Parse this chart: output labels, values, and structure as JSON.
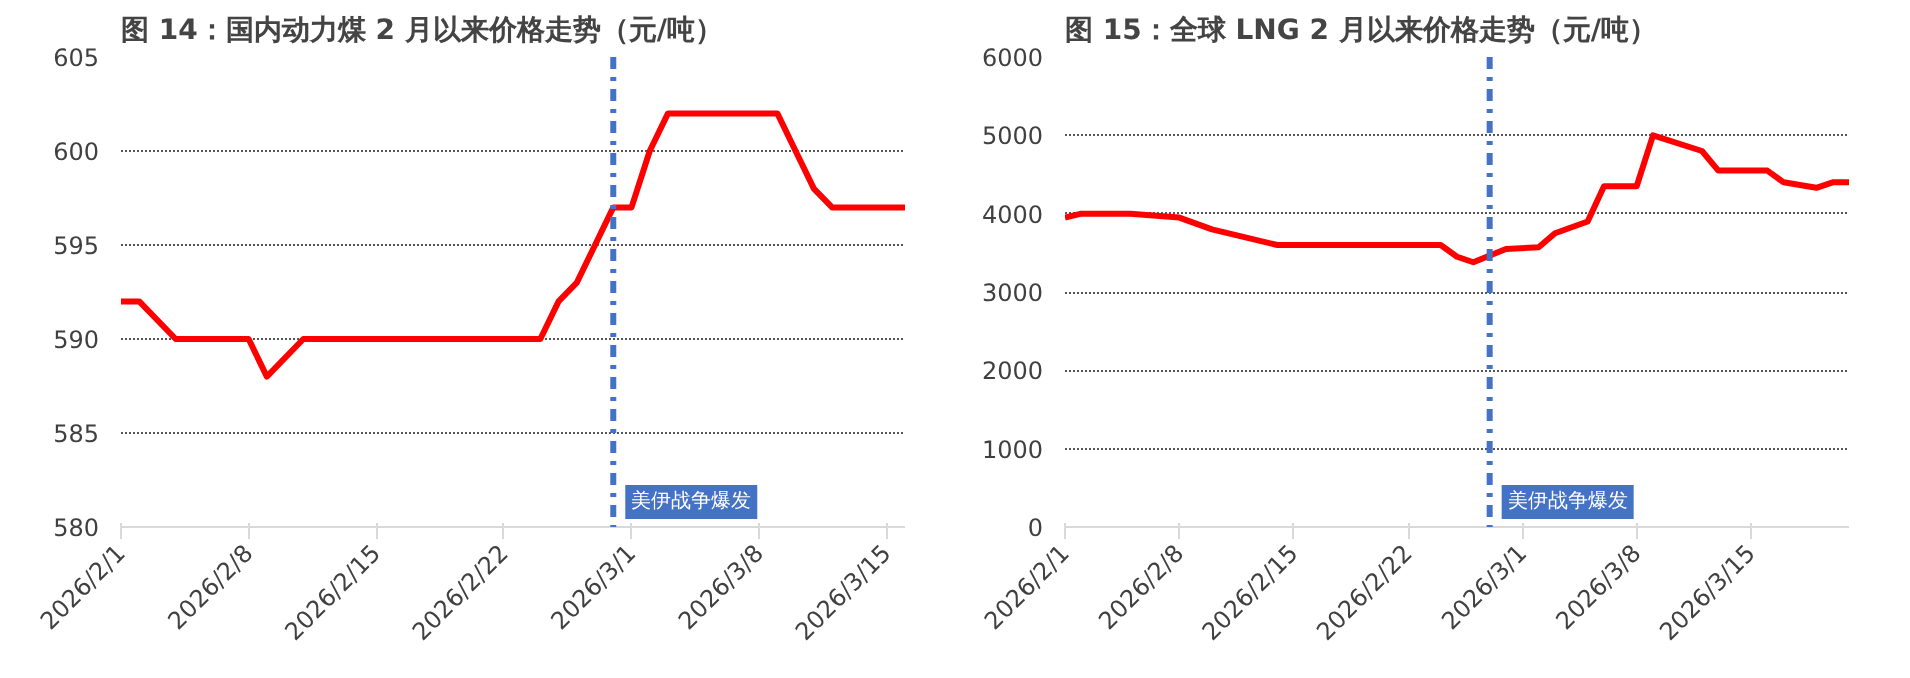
{
  "chart_data": [
    {
      "type": "line",
      "title": "图 14：国内动力煤 2 月以来价格走势（元/吨）",
      "x": [
        "2026-02-01",
        "2026-02-02",
        "2026-02-04",
        "2026-02-08",
        "2026-02-09",
        "2026-02-11",
        "2026-02-24",
        "2026-02-25",
        "2026-02-26",
        "2026-02-27",
        "2026-02-28",
        "2026-03-01",
        "2026-03-02",
        "2026-03-03",
        "2026-03-09",
        "2026-03-10",
        "2026-03-11",
        "2026-03-12",
        "2026-03-16"
      ],
      "series": [
        {
          "color": "#ff0000",
          "values": [
            592,
            592,
            590,
            590,
            588,
            590,
            590,
            592,
            593,
            595,
            597,
            597,
            600,
            602,
            602,
            600,
            598,
            597,
            597
          ]
        }
      ],
      "xlim": [
        "2026-02-01",
        "2026-03-16"
      ],
      "xticks": [
        {
          "value": "2026-02-01",
          "label": "2026/2/1"
        },
        {
          "value": "2026-02-08",
          "label": "2026/2/8"
        },
        {
          "value": "2026-02-15",
          "label": "2026/2/15"
        },
        {
          "value": "2026-02-22",
          "label": "2026/2/22"
        },
        {
          "value": "2026-03-01",
          "label": "2026/3/1"
        },
        {
          "value": "2026-03-08",
          "label": "2026/3/8"
        },
        {
          "value": "2026-03-15",
          "label": "2026/3/15"
        }
      ],
      "ylim": [
        580,
        605
      ],
      "yticks": [
        580,
        585,
        590,
        595,
        600,
        605
      ],
      "grid": "y",
      "line_style": "solid",
      "marker": "none",
      "ref_lines": [
        {
          "axis": "x",
          "value": "2026-02-28",
          "label": "美伊战争爆发",
          "color": "#4472c4",
          "line_style": "dashdot"
        }
      ]
    },
    {
      "type": "line",
      "title": "图 15：全球 LNG 2 月以来价格走势（元/吨）",
      "x": [
        "2026-02-01",
        "2026-02-02",
        "2026-02-05",
        "2026-02-08",
        "2026-02-10",
        "2026-02-14",
        "2026-02-24",
        "2026-02-25",
        "2026-02-26",
        "2026-02-28",
        "2026-03-02",
        "2026-03-03",
        "2026-03-05",
        "2026-03-06",
        "2026-03-08",
        "2026-03-09",
        "2026-03-12",
        "2026-03-13",
        "2026-03-16",
        "2026-03-17",
        "2026-03-19",
        "2026-03-20",
        "2026-03-21"
      ],
      "series": [
        {
          "color": "#ff0000",
          "values": [
            3950,
            4000,
            4000,
            3950,
            3800,
            3600,
            3600,
            3450,
            3380,
            3550,
            3570,
            3750,
            3900,
            4350,
            4350,
            5000,
            4800,
            4550,
            4550,
            4400,
            4330,
            4400,
            4400
          ]
        }
      ],
      "xlim": [
        "2026-02-01",
        "2026-03-21"
      ],
      "xticks": [
        {
          "value": "2026-02-01",
          "label": "2026/2/1"
        },
        {
          "value": "2026-02-08",
          "label": "2026/2/8"
        },
        {
          "value": "2026-02-15",
          "label": "2026/2/15"
        },
        {
          "value": "2026-02-22",
          "label": "2026/2/22"
        },
        {
          "value": "2026-03-01",
          "label": "2026/3/1"
        },
        {
          "value": "2026-03-08",
          "label": "2026/3/8"
        },
        {
          "value": "2026-03-15",
          "label": "2026/3/15"
        }
      ],
      "ylim": [
        0,
        6000
      ],
      "yticks": [
        0,
        1000,
        2000,
        3000,
        4000,
        5000,
        6000
      ],
      "grid": "y",
      "line_style": "solid",
      "marker": "none",
      "ref_lines": [
        {
          "axis": "x",
          "value": "2026-02-27",
          "label": "美伊战争爆发",
          "color": "#4472c4",
          "line_style": "dashdot"
        }
      ]
    }
  ]
}
